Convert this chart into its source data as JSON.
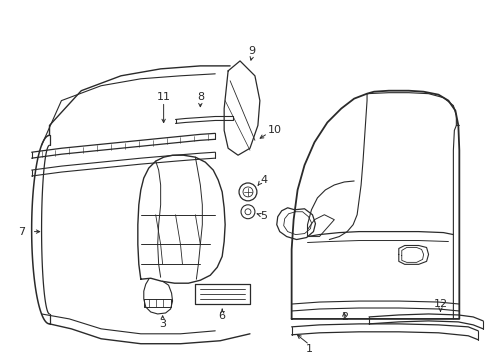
{
  "background_color": "#ffffff",
  "line_color": "#2a2a2a",
  "figsize": [
    4.89,
    3.6
  ],
  "dpi": 100
}
